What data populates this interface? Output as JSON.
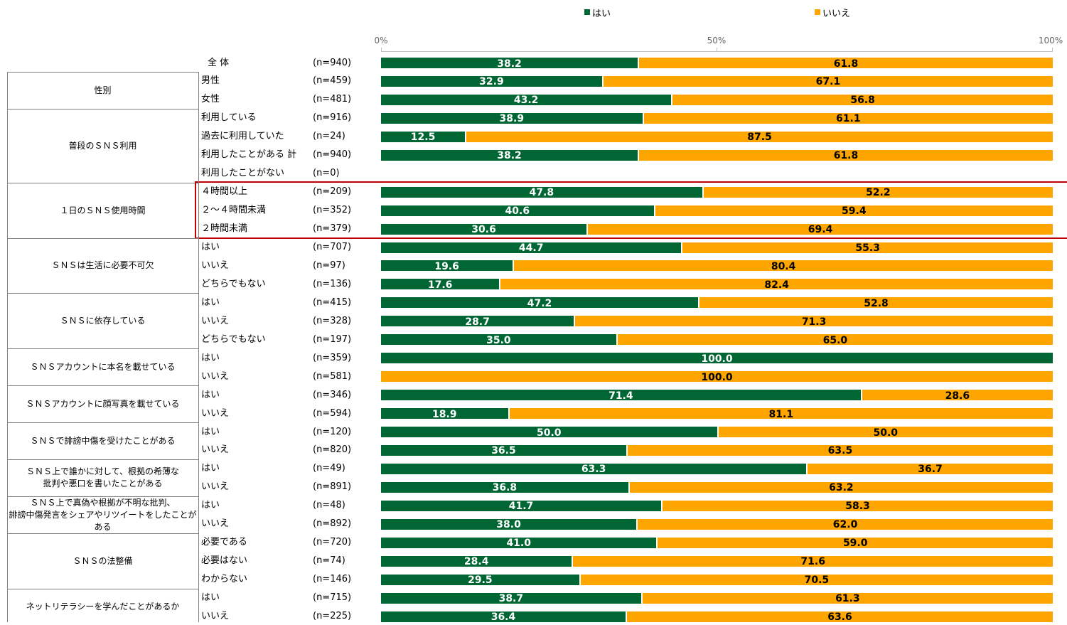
{
  "colors": {
    "yes": "#006633",
    "no": "#FFA500",
    "highlight": "#C00000"
  },
  "chart_data": {
    "type": "bar",
    "orientation": "horizontal-stacked-100",
    "xlim": [
      0,
      100
    ],
    "ticks": [
      "0%",
      "50%",
      "100%"
    ],
    "legend_position": "top",
    "series": [
      {
        "name": "はい"
      },
      {
        "name": "いいえ"
      }
    ],
    "overall": {
      "label": "全 体",
      "n": "(n=940)",
      "values": [
        "38.2",
        "61.8"
      ]
    },
    "groups": [
      {
        "title": "性別",
        "rows": [
          {
            "label": "男性",
            "n": "(n=459)",
            "values": [
              "32.9",
              "67.1"
            ]
          },
          {
            "label": "女性",
            "n": "(n=481)",
            "values": [
              "43.2",
              "56.8"
            ]
          }
        ]
      },
      {
        "title": "普段のＳＮＳ利用",
        "rows": [
          {
            "label": "利用している",
            "n": "(n=916)",
            "values": [
              "38.9",
              "61.1"
            ]
          },
          {
            "label": "過去に利用していた",
            "n": "(n=24)",
            "values": [
              "12.5",
              "87.5"
            ]
          },
          {
            "label": "利用したことがある 計",
            "n": "(n=940)",
            "values": [
              "38.2",
              "61.8"
            ]
          },
          {
            "label": "利用したことがない",
            "n": "(n=0)",
            "values": []
          }
        ]
      },
      {
        "title": "１日のＳＮＳ使用時間",
        "highlight": true,
        "rows": [
          {
            "label": "４時間以上",
            "n": "(n=209)",
            "values": [
              "47.8",
              "52.2"
            ]
          },
          {
            "label": "２～４時間未満",
            "n": "(n=352)",
            "values": [
              "40.6",
              "59.4"
            ]
          },
          {
            "label": "２時間未満",
            "n": "(n=379)",
            "values": [
              "30.6",
              "69.4"
            ]
          }
        ]
      },
      {
        "title": "ＳＮＳは生活に必要不可欠",
        "rows": [
          {
            "label": "はい",
            "n": "(n=707)",
            "values": [
              "44.7",
              "55.3"
            ]
          },
          {
            "label": "いいえ",
            "n": "(n=97)",
            "values": [
              "19.6",
              "80.4"
            ]
          },
          {
            "label": "どちらでもない",
            "n": "(n=136)",
            "values": [
              "17.6",
              "82.4"
            ]
          }
        ]
      },
      {
        "title": "ＳＮＳに依存している",
        "rows": [
          {
            "label": "はい",
            "n": "(n=415)",
            "values": [
              "47.2",
              "52.8"
            ]
          },
          {
            "label": "いいえ",
            "n": "(n=328)",
            "values": [
              "28.7",
              "71.3"
            ]
          },
          {
            "label": "どちらでもない",
            "n": "(n=197)",
            "values": [
              "35.0",
              "65.0"
            ]
          }
        ]
      },
      {
        "title": "ＳＮＳアカウントに本名を載せている",
        "rows": [
          {
            "label": "はい",
            "n": "(n=359)",
            "values": [
              "100.0",
              "0"
            ]
          },
          {
            "label": "いいえ",
            "n": "(n=581)",
            "values": [
              "0",
              "100.0"
            ]
          }
        ]
      },
      {
        "title": "ＳＮＳアカウントに顔写真を載せている",
        "rows": [
          {
            "label": "はい",
            "n": "(n=346)",
            "values": [
              "71.4",
              "28.6"
            ]
          },
          {
            "label": "いいえ",
            "n": "(n=594)",
            "values": [
              "18.9",
              "81.1"
            ]
          }
        ]
      },
      {
        "title": "ＳＮＳで誹謗中傷を受けたことがある",
        "rows": [
          {
            "label": "はい",
            "n": "(n=120)",
            "values": [
              "50.0",
              "50.0"
            ]
          },
          {
            "label": "いいえ",
            "n": "(n=820)",
            "values": [
              "36.5",
              "63.5"
            ]
          }
        ]
      },
      {
        "title": "ＳＮＳ上で誰かに対して、根拠の希薄な\n批判や悪口を書いたことがある",
        "rows": [
          {
            "label": "はい",
            "n": "(n=49)",
            "values": [
              "63.3",
              "36.7"
            ]
          },
          {
            "label": "いいえ",
            "n": "(n=891)",
            "values": [
              "36.8",
              "63.2"
            ]
          }
        ]
      },
      {
        "title": "ＳＮＳ上で真偽や根拠が不明な批判、\n誹謗中傷発言をシェアやリツイートをしたことがある",
        "rows": [
          {
            "label": "はい",
            "n": "(n=48)",
            "values": [
              "41.7",
              "58.3"
            ]
          },
          {
            "label": "いいえ",
            "n": "(n=892)",
            "values": [
              "38.0",
              "62.0"
            ]
          }
        ]
      },
      {
        "title": "ＳＮＳの法整備",
        "rows": [
          {
            "label": "必要である",
            "n": "(n=720)",
            "values": [
              "41.0",
              "59.0"
            ]
          },
          {
            "label": "必要はない",
            "n": "(n=74)",
            "values": [
              "28.4",
              "71.6"
            ]
          },
          {
            "label": "わからない",
            "n": "(n=146)",
            "values": [
              "29.5",
              "70.5"
            ]
          }
        ]
      },
      {
        "title": "ネットリテラシーを学んだことがあるか",
        "rows": [
          {
            "label": "はい",
            "n": "(n=715)",
            "values": [
              "38.7",
              "61.3"
            ]
          },
          {
            "label": "いいえ",
            "n": "(n=225)",
            "values": [
              "36.4",
              "63.6"
            ]
          }
        ]
      }
    ]
  }
}
